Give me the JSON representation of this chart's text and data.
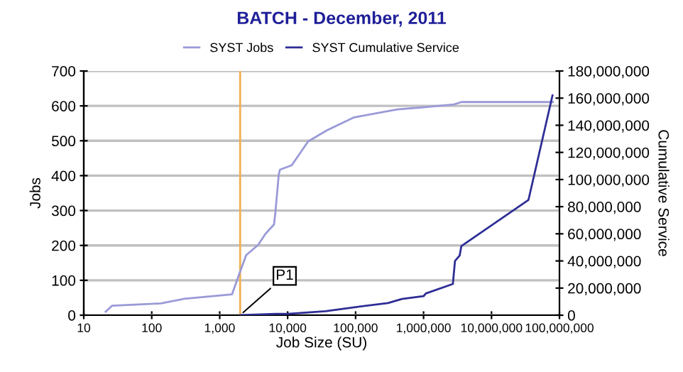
{
  "chart_data": {
    "type": "line",
    "title": "BATCH - December, 2011",
    "xlabel": "Job Size (SU)",
    "ylabel": "Jobs",
    "y2label": "Cumulative Service",
    "log": "x",
    "grid": "y",
    "legend": "top",
    "marker": "none",
    "line_style": "solid",
    "xlim": [
      10,
      100000000
    ],
    "xticks": [
      {
        "value": 10,
        "label": "10"
      },
      {
        "value": 100,
        "label": "100"
      },
      {
        "value": 1000,
        "label": "1,000"
      },
      {
        "value": 10000,
        "label": "10,000"
      },
      {
        "value": 100000,
        "label": "100,000"
      },
      {
        "value": 1000000,
        "label": "1,000,000"
      },
      {
        "value": 10000000,
        "label": "10,000,000"
      },
      {
        "value": 100000000,
        "label": "100,000,000"
      }
    ],
    "ylim": [
      0,
      700
    ],
    "yticks": [
      0,
      100,
      200,
      300,
      400,
      500,
      600,
      700
    ],
    "y2lim": [
      0,
      180000000
    ],
    "y2ticks": [
      0,
      {
        "value": 20000000,
        "label": "20,000,000"
      },
      {
        "value": 40000000,
        "label": "40,000,000"
      },
      {
        "value": 60000000,
        "label": "60,000,000"
      },
      {
        "value": 80000000,
        "label": "80,000,000"
      },
      {
        "value": 100000000,
        "label": "100,000,000"
      },
      {
        "value": 120000000,
        "label": "120,000,000"
      },
      {
        "value": 140000000,
        "label": "140,000,000"
      },
      {
        "value": 160000000,
        "label": "160,000,000"
      },
      {
        "value": 180000000,
        "label": "180,000,000"
      }
    ],
    "ref_lines": [
      {
        "axis": "x",
        "value": 2000,
        "color": "#f0b050"
      }
    ],
    "annotations": [
      {
        "text": "P1",
        "x": 2000,
        "y": 0
      }
    ],
    "series": [
      {
        "name": "SYST Jobs",
        "color": "#9a9ad8",
        "x": [
          21,
          26,
          136,
          300,
          1520,
          1940,
          2450,
          3700,
          4700,
          6300,
          6600,
          7400,
          7700,
          11500,
          20000,
          38000,
          95000,
          410000,
          1000000,
          2800000,
          3600000,
          80000000
        ],
        "values": [
          10,
          27,
          34,
          47,
          60,
          118,
          172,
          202,
          233,
          260,
          294,
          403,
          417,
          430,
          498,
          530,
          567,
          590,
          596,
          604,
          611,
          611
        ]
      },
      {
        "name": "SYST Cumulative Service",
        "color": "#2e2e96",
        "axis": "y2",
        "x": [
          2000,
          6600,
          10000,
          36000,
          100000,
          300000,
          480000,
          1000000,
          1080000,
          2700000,
          2900000,
          3400000,
          3600000,
          35000000,
          79000000
        ],
        "values": [
          0,
          1000000,
          1000000,
          3000000,
          6000000,
          9000000,
          12000000,
          14000000,
          16000000,
          23000000,
          40000000,
          44000000,
          51000000,
          85000000,
          162000000
        ]
      }
    ]
  }
}
